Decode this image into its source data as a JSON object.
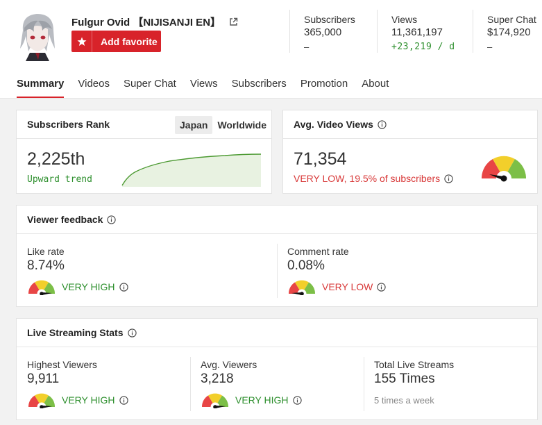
{
  "channel": {
    "name": "Fulgur Ovid 【NIJISANJI EN】",
    "favorite_label": "Add favorite"
  },
  "stats": [
    {
      "label": "Subscribers",
      "value": "365,000",
      "delta": "–"
    },
    {
      "label": "Views",
      "value": "11,361,197",
      "delta": "+23,219 / d"
    },
    {
      "label": "Super Chat",
      "value": "$174,920",
      "delta": "–"
    }
  ],
  "tabs": [
    "Summary",
    "Videos",
    "Super Chat",
    "Views",
    "Subscribers",
    "Promotion",
    "About"
  ],
  "rank": {
    "title": "Subscribers Rank",
    "segments": [
      "Japan",
      "Worldwide"
    ],
    "value": "2,225th",
    "trend": "Upward trend"
  },
  "avg_views": {
    "title": "Avg. Video Views",
    "value": "71,354",
    "note": "VERY LOW, 19.5% of subscribers"
  },
  "feedback": {
    "title": "Viewer feedback",
    "like_label": "Like rate",
    "like_value": "8.74%",
    "like_rating": "VERY HIGH",
    "comment_label": "Comment rate",
    "comment_value": "0.08%",
    "comment_rating": "VERY LOW"
  },
  "live": {
    "title": "Live Streaming Stats",
    "highest_label": "Highest Viewers",
    "highest_value": "9,911",
    "highest_rating": "VERY HIGH",
    "avg_label": "Avg. Viewers",
    "avg_value": "3,218",
    "avg_rating": "VERY HIGH",
    "total_label": "Total Live Streams",
    "total_value": "155 Times",
    "total_note": "5 times a week"
  },
  "colors": {
    "accent": "#d8232a",
    "good": "#2d8f2d",
    "bad": "#d83838"
  }
}
